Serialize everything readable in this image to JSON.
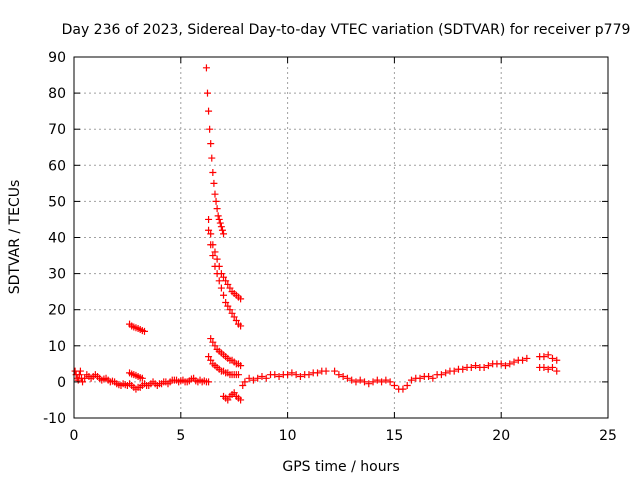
{
  "chart_data": {
    "type": "scatter",
    "title": "Day 236 of 2023, Sidereal Day-to-day VTEC variation (SDTVAR) for receiver p779",
    "xlabel": "GPS time / hours",
    "ylabel": "SDTVAR / TECUs",
    "xlim": [
      0,
      25
    ],
    "ylim": [
      -10,
      90
    ],
    "xticks": [
      "0",
      "5",
      "10",
      "15",
      "20",
      "25"
    ],
    "yticks": [
      "-10",
      "0",
      "10",
      "20",
      "30",
      "40",
      "50",
      "60",
      "70",
      "80",
      "90"
    ],
    "grid": true,
    "marker": "+",
    "marker_color": "#ff0000",
    "series": [
      {
        "name": "SDTVAR",
        "x": [
          0.05,
          0.1,
          0.15,
          0.2,
          0.25,
          0.3,
          0.35,
          0.4,
          0.5,
          0.6,
          0.7,
          0.8,
          0.9,
          1.0,
          1.1,
          1.2,
          1.3,
          1.4,
          1.5,
          1.6,
          1.7,
          1.8,
          1.9,
          2.0,
          2.1,
          2.2,
          2.3,
          2.4,
          2.5,
          2.6,
          2.7,
          2.8,
          2.9,
          3.0,
          3.1,
          3.2,
          3.3,
          3.4,
          3.5,
          3.6,
          3.7,
          3.8,
          3.9,
          4.0,
          4.1,
          4.2,
          4.3,
          4.4,
          4.5,
          4.6,
          4.7,
          4.8,
          4.9,
          5.0,
          5.1,
          5.2,
          5.3,
          5.4,
          5.5,
          5.6,
          5.7,
          5.8,
          5.9,
          6.0,
          6.1,
          6.2,
          6.3,
          2.6,
          2.7,
          2.8,
          2.9,
          3.0,
          3.1,
          3.2,
          3.3,
          2.6,
          2.7,
          2.8,
          2.9,
          3.0,
          3.1,
          3.2,
          6.2,
          6.25,
          6.3,
          6.35,
          6.4,
          6.45,
          6.5,
          6.55,
          6.6,
          6.65,
          6.7,
          6.75,
          6.8,
          6.85,
          6.9,
          6.95,
          7.0,
          6.3,
          6.4,
          6.5,
          6.6,
          6.7,
          6.8,
          6.9,
          7.0,
          7.1,
          7.2,
          7.3,
          7.4,
          7.5,
          7.6,
          7.7,
          7.8,
          6.3,
          6.4,
          6.5,
          6.6,
          6.7,
          6.8,
          6.9,
          7.0,
          7.1,
          7.2,
          7.3,
          7.4,
          7.5,
          7.6,
          7.7,
          7.8,
          6.4,
          6.5,
          6.6,
          6.7,
          6.8,
          6.9,
          7.0,
          7.1,
          7.2,
          7.3,
          7.4,
          7.5,
          7.6,
          7.7,
          7.8,
          6.3,
          6.4,
          6.5,
          6.6,
          6.7,
          6.8,
          6.9,
          7.0,
          7.1,
          7.2,
          7.3,
          7.4,
          7.5,
          7.6,
          7.7,
          7.0,
          7.1,
          7.2,
          7.3,
          7.4,
          7.5,
          7.6,
          7.7,
          7.8,
          7.9,
          8.0,
          8.2,
          8.4,
          8.6,
          8.8,
          9.0,
          9.2,
          9.4,
          9.6,
          9.8,
          10.0,
          10.2,
          10.4,
          10.6,
          10.8,
          11.0,
          11.2,
          11.4,
          11.6,
          11.8,
          12.2,
          12.4,
          12.6,
          12.8,
          13.0,
          13.2,
          13.4,
          13.6,
          13.8,
          14.0,
          14.2,
          14.4,
          14.6,
          14.8,
          15.0,
          15.2,
          15.4,
          15.6,
          15.8,
          16.0,
          16.2,
          16.4,
          16.6,
          16.8,
          17.0,
          17.2,
          17.4,
          17.6,
          17.8,
          18.0,
          18.2,
          18.4,
          18.6,
          18.8,
          19.0,
          19.2,
          19.4,
          19.6,
          19.8,
          20.0,
          20.2,
          20.4,
          20.6,
          20.8,
          21.0,
          21.2,
          21.8,
          22.0,
          22.2,
          22.4,
          22.6,
          21.8,
          22.0,
          22.2,
          22.4,
          22.6
        ],
        "y": [
          3,
          2,
          1,
          0.5,
          2,
          3,
          1,
          0,
          1,
          2,
          1.5,
          1,
          1.5,
          2,
          1.5,
          1,
          0.5,
          0.8,
          1,
          0.5,
          0,
          0.2,
          0,
          -0.5,
          -0.8,
          -1,
          -0.5,
          -0.8,
          -1,
          -0.5,
          -1,
          -1.5,
          -2,
          -1.5,
          -1.5,
          -1,
          -0.5,
          -1,
          -1,
          -0.5,
          0,
          -0.5,
          -1,
          -0.5,
          -0.5,
          0,
          0,
          -0.5,
          0,
          0.5,
          0.5,
          0.5,
          0,
          0.3,
          0.5,
          0,
          0,
          0.3,
          0.8,
          1,
          0.3,
          0,
          0.5,
          0,
          0.3,
          0,
          0,
          16,
          15.5,
          15.2,
          15,
          14.8,
          14.5,
          14.2,
          14,
          2.5,
          2.2,
          2,
          1.8,
          1.5,
          1.2,
          1,
          87,
          80,
          75,
          70,
          66,
          62,
          58,
          55,
          52,
          50,
          48,
          46,
          45,
          44,
          43,
          42,
          41,
          42,
          38,
          35,
          32,
          30,
          28,
          26,
          24,
          22,
          21,
          20,
          19,
          18,
          17,
          16,
          15.5,
          45,
          41,
          38,
          36,
          34,
          32,
          30,
          29,
          28,
          27,
          26,
          25,
          24.5,
          24,
          23.5,
          23,
          12,
          11,
          10,
          9,
          8.5,
          8,
          7.5,
          7,
          6.5,
          6,
          6,
          5.5,
          5,
          5,
          4.5,
          7,
          6,
          5,
          4.5,
          4,
          3.5,
          3,
          3,
          2.5,
          2.5,
          2,
          2,
          2,
          2,
          2,
          -4,
          -4.5,
          -5,
          -4,
          -3.5,
          -3,
          -4,
          -4.5,
          -5,
          -1,
          0,
          1,
          0.5,
          1,
          1.5,
          1,
          2,
          2,
          1.5,
          2,
          2,
          2.5,
          2,
          1.5,
          2,
          2,
          2.5,
          2.5,
          3,
          3,
          3,
          2,
          1.5,
          1,
          0.5,
          0,
          0.5,
          0,
          -0.5,
          0,
          0.5,
          0,
          0.5,
          0,
          -1,
          -2,
          -2,
          -1,
          0.5,
          1,
          1,
          1.5,
          1.5,
          1,
          2,
          2,
          2.5,
          3,
          3,
          3.5,
          3.5,
          4,
          4,
          4.5,
          4,
          4,
          4.5,
          5,
          5,
          5,
          4.5,
          5,
          5.5,
          6,
          6,
          6.5,
          7,
          7,
          7.5,
          6.5,
          6,
          4,
          4,
          3.5,
          4,
          3
        ]
      }
    ]
  }
}
